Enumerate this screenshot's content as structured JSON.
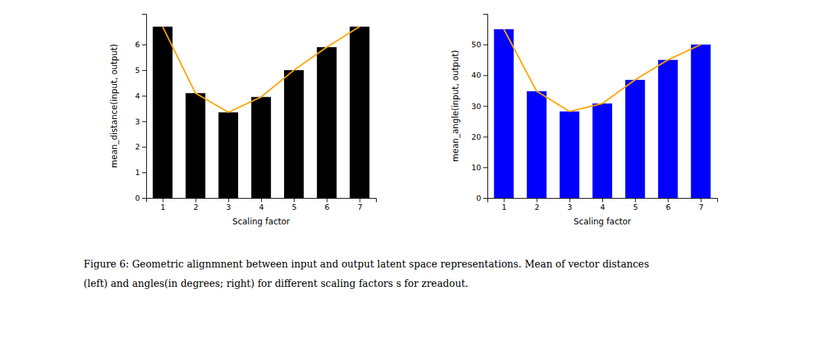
{
  "chart_data": [
    {
      "type": "bar",
      "xlabel": "Scaling factor",
      "ylabel": "mean_distance(input, output)",
      "x": [
        1,
        2,
        3,
        4,
        5,
        6,
        7
      ],
      "xlim": [
        0.5,
        7.5
      ],
      "xticks": [
        1,
        2,
        3,
        4,
        5,
        6,
        7
      ],
      "ylim": [
        0,
        7.2
      ],
      "yticks": [
        0,
        1,
        2,
        3,
        4,
        5,
        6
      ],
      "grid": false,
      "series": [
        {
          "type": "bar",
          "color": "black",
          "values": [
            6.7,
            4.1,
            3.35,
            3.95,
            5.0,
            5.9,
            6.7
          ]
        },
        {
          "type": "line",
          "color": "#FFA500",
          "values": [
            6.7,
            4.1,
            3.35,
            3.95,
            5.0,
            5.9,
            6.7
          ]
        }
      ]
    },
    {
      "type": "bar",
      "xlabel": "Scaling factor",
      "ylabel": "mean_angle(input, output)",
      "x": [
        1,
        2,
        3,
        4,
        5,
        6,
        7
      ],
      "xlim": [
        0.5,
        7.5
      ],
      "xticks": [
        1,
        2,
        3,
        4,
        5,
        6,
        7
      ],
      "ylim": [
        0,
        60
      ],
      "yticks": [
        0,
        10,
        20,
        30,
        40,
        50
      ],
      "grid": false,
      "series": [
        {
          "type": "bar",
          "color": "blue",
          "values": [
            55.0,
            34.8,
            28.2,
            30.8,
            38.5,
            45.0,
            50.0
          ]
        },
        {
          "type": "line",
          "color": "#FFA500",
          "values": [
            55.0,
            34.8,
            28.2,
            30.8,
            38.5,
            45.0,
            50.0
          ]
        }
      ]
    }
  ],
  "caption": [
    "Figure 6: Geometric alignmnent between input and output latent space representations.  Mean of vector distances",
    "(left) and angles(in degrees; right) for different scaling factors s for zreadout."
  ]
}
